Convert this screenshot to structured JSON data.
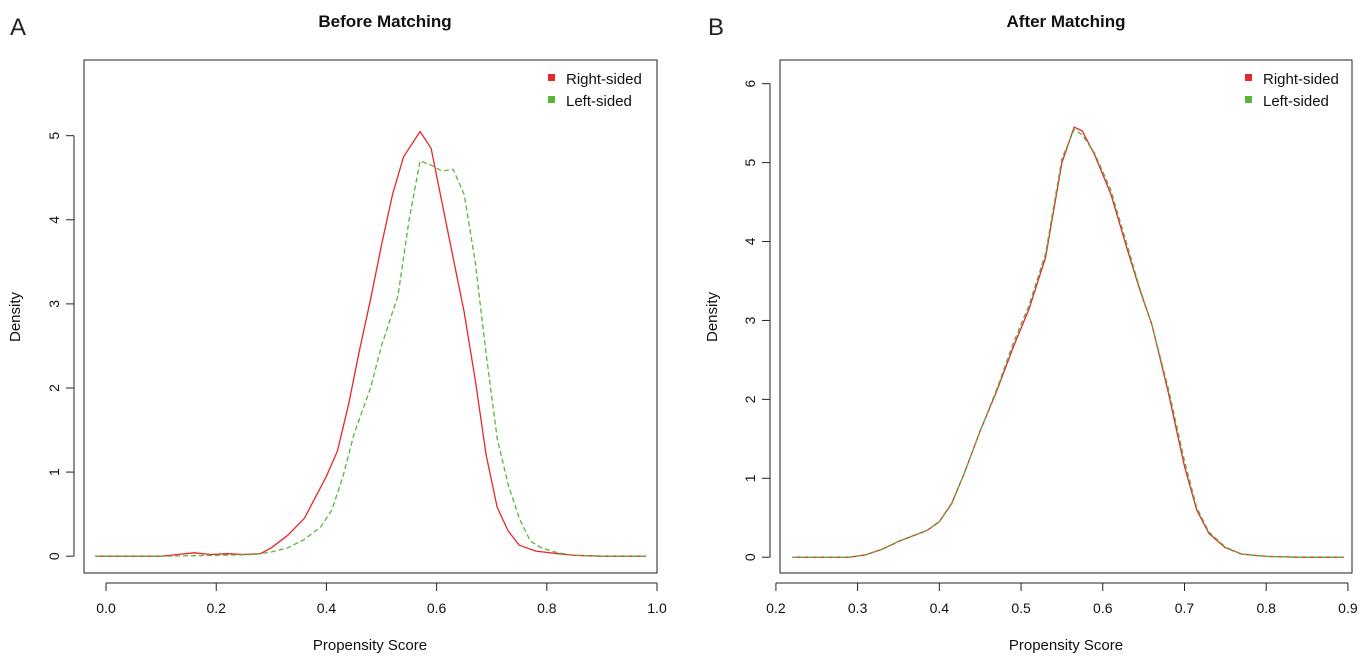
{
  "figure": {
    "panels": [
      {
        "letter": "A",
        "title": "Before Matching",
        "xlabel": "Propensity Score",
        "ylabel": "Density",
        "legend": [
          "Right-sided",
          "Left-sided"
        ]
      },
      {
        "letter": "B",
        "title": "After Matching",
        "xlabel": "Propensity Score",
        "ylabel": "Density",
        "legend": [
          "Right-sided",
          "Left-sided"
        ]
      }
    ]
  },
  "chart_data": [
    {
      "type": "line",
      "title": "Before Matching",
      "xlabel": "Propensity Score",
      "ylabel": "Density",
      "xlim": [
        -0.04,
        1.0
      ],
      "ylim": [
        -0.2,
        5.9
      ],
      "xticks": [
        0.0,
        0.2,
        0.4,
        0.6,
        0.8,
        1.0
      ],
      "xtick_labels": [
        "0.0",
        "0.2",
        "0.4",
        "0.6",
        "0.8",
        "1.0"
      ],
      "yticks": [
        0,
        1,
        2,
        3,
        4,
        5
      ],
      "ytick_labels": [
        "0",
        "1",
        "2",
        "3",
        "4",
        "5"
      ],
      "legend_position": "top-right",
      "grid": false,
      "series": [
        {
          "name": "Right-sided",
          "color": "#e8262b",
          "dash": "solid",
          "x": [
            -0.02,
            0.04,
            0.1,
            0.13,
            0.16,
            0.19,
            0.22,
            0.25,
            0.28,
            0.3,
            0.33,
            0.36,
            0.38,
            0.4,
            0.42,
            0.44,
            0.46,
            0.48,
            0.5,
            0.52,
            0.54,
            0.57,
            0.59,
            0.61,
            0.63,
            0.65,
            0.67,
            0.69,
            0.71,
            0.73,
            0.75,
            0.78,
            0.82,
            0.85,
            0.9,
            0.98
          ],
          "y": [
            0,
            0,
            0,
            0.02,
            0.04,
            0.02,
            0.03,
            0.02,
            0.03,
            0.1,
            0.25,
            0.45,
            0.7,
            0.95,
            1.25,
            1.8,
            2.45,
            3.05,
            3.7,
            4.3,
            4.75,
            5.05,
            4.85,
            4.2,
            3.55,
            2.9,
            2.1,
            1.2,
            0.58,
            0.3,
            0.13,
            0.06,
            0.03,
            0.01,
            0,
            0
          ]
        },
        {
          "name": "Left-sided",
          "color": "#5ab43c",
          "dash": "dashed",
          "x": [
            -0.02,
            0.1,
            0.2,
            0.27,
            0.3,
            0.33,
            0.36,
            0.39,
            0.41,
            0.43,
            0.45,
            0.48,
            0.5,
            0.53,
            0.55,
            0.57,
            0.59,
            0.61,
            0.63,
            0.65,
            0.67,
            0.69,
            0.71,
            0.73,
            0.75,
            0.77,
            0.79,
            0.82,
            0.85,
            0.9,
            0.98
          ],
          "y": [
            0,
            0,
            0.01,
            0.02,
            0.05,
            0.1,
            0.2,
            0.35,
            0.55,
            0.95,
            1.45,
            2.0,
            2.5,
            3.1,
            4.0,
            4.7,
            4.65,
            4.58,
            4.6,
            4.3,
            3.5,
            2.4,
            1.4,
            0.85,
            0.45,
            0.18,
            0.1,
            0.04,
            0.01,
            0,
            0
          ]
        }
      ]
    },
    {
      "type": "line",
      "title": "After Matching",
      "xlabel": "Propensity Score",
      "ylabel": "Density",
      "xlim": [
        0.205,
        0.905
      ],
      "ylim": [
        -0.2,
        6.3
      ],
      "xticks": [
        0.2,
        0.3,
        0.4,
        0.5,
        0.6,
        0.7,
        0.8,
        0.9
      ],
      "xtick_labels": [
        "0.2",
        "0.3",
        "0.4",
        "0.5",
        "0.6",
        "0.7",
        "0.8",
        "0.9"
      ],
      "yticks": [
        0,
        1,
        2,
        3,
        4,
        5,
        6
      ],
      "ytick_labels": [
        "0",
        "1",
        "2",
        "3",
        "4",
        "5",
        "6"
      ],
      "legend_position": "top-right",
      "grid": false,
      "series": [
        {
          "name": "Right-sided",
          "color": "#e8262b",
          "dash": "solid",
          "x": [
            0.22,
            0.26,
            0.29,
            0.31,
            0.33,
            0.35,
            0.37,
            0.385,
            0.4,
            0.415,
            0.43,
            0.45,
            0.47,
            0.49,
            0.51,
            0.53,
            0.55,
            0.565,
            0.575,
            0.59,
            0.61,
            0.63,
            0.645,
            0.66,
            0.68,
            0.7,
            0.715,
            0.73,
            0.75,
            0.77,
            0.8,
            0.84,
            0.895
          ],
          "y": [
            0,
            0,
            0,
            0.03,
            0.1,
            0.2,
            0.28,
            0.34,
            0.45,
            0.68,
            1.05,
            1.6,
            2.1,
            2.65,
            3.15,
            3.8,
            5.0,
            5.45,
            5.4,
            5.1,
            4.6,
            3.9,
            3.4,
            2.95,
            2.1,
            1.15,
            0.6,
            0.3,
            0.12,
            0.04,
            0.01,
            0,
            0
          ]
        },
        {
          "name": "Left-sided",
          "color": "#5ab43c",
          "dash": "dashed",
          "x": [
            0.22,
            0.26,
            0.29,
            0.31,
            0.33,
            0.35,
            0.37,
            0.385,
            0.4,
            0.415,
            0.43,
            0.45,
            0.47,
            0.49,
            0.51,
            0.53,
            0.55,
            0.565,
            0.575,
            0.59,
            0.61,
            0.63,
            0.645,
            0.66,
            0.68,
            0.7,
            0.715,
            0.73,
            0.75,
            0.77,
            0.8,
            0.84,
            0.895
          ],
          "y": [
            0,
            0,
            0,
            0.03,
            0.1,
            0.2,
            0.28,
            0.34,
            0.45,
            0.67,
            1.05,
            1.6,
            2.12,
            2.7,
            3.2,
            3.85,
            5.05,
            5.42,
            5.35,
            5.12,
            4.65,
            3.95,
            3.42,
            2.95,
            2.15,
            1.22,
            0.63,
            0.32,
            0.13,
            0.04,
            0.01,
            0,
            0
          ]
        }
      ]
    }
  ]
}
